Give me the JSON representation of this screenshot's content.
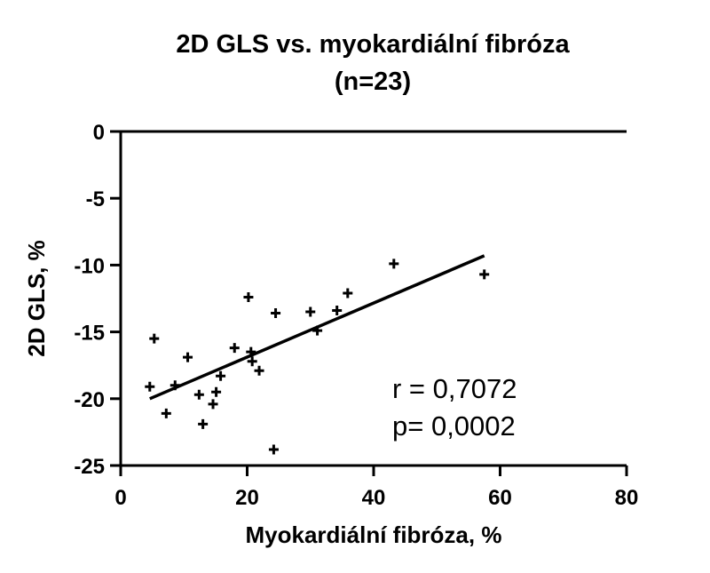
{
  "chart_data": {
    "type": "scatter",
    "title": "2D GLS vs. myokardiální fibróza",
    "subtitle": "(n=23)",
    "xlabel": "Myokardiální fibróza, %",
    "ylabel": "2D GLS, %",
    "xlim": [
      0,
      80
    ],
    "ylim": [
      -25,
      0
    ],
    "xticks": [
      0,
      20,
      40,
      60,
      80
    ],
    "yticks": [
      0,
      -5,
      -10,
      -15,
      -20,
      -25
    ],
    "grid": false,
    "marker": "plus",
    "points": [
      {
        "x": 4.6,
        "y": -19.1
      },
      {
        "x": 5.3,
        "y": -15.5
      },
      {
        "x": 7.2,
        "y": -21.1
      },
      {
        "x": 8.6,
        "y": -19.0
      },
      {
        "x": 10.6,
        "y": -16.9
      },
      {
        "x": 12.4,
        "y": -19.7
      },
      {
        "x": 13.0,
        "y": -21.9
      },
      {
        "x": 14.6,
        "y": -20.4
      },
      {
        "x": 15.1,
        "y": -19.5
      },
      {
        "x": 15.8,
        "y": -18.3
      },
      {
        "x": 18.0,
        "y": -16.2
      },
      {
        "x": 20.2,
        "y": -12.4
      },
      {
        "x": 20.6,
        "y": -16.5
      },
      {
        "x": 20.8,
        "y": -17.2
      },
      {
        "x": 21.9,
        "y": -17.9
      },
      {
        "x": 24.2,
        "y": -23.8
      },
      {
        "x": 24.5,
        "y": -13.6
      },
      {
        "x": 30.0,
        "y": -13.5
      },
      {
        "x": 31.1,
        "y": -14.9
      },
      {
        "x": 34.2,
        "y": -13.4
      },
      {
        "x": 35.9,
        "y": -12.1
      },
      {
        "x": 43.2,
        "y": -9.9
      },
      {
        "x": 57.5,
        "y": -10.7
      }
    ],
    "regression_line": {
      "x": [
        4.6,
        57.5
      ],
      "y": [
        -20.0,
        -9.3
      ]
    },
    "annotations": [
      "r = 0,7072",
      "p= 0,0002"
    ]
  }
}
